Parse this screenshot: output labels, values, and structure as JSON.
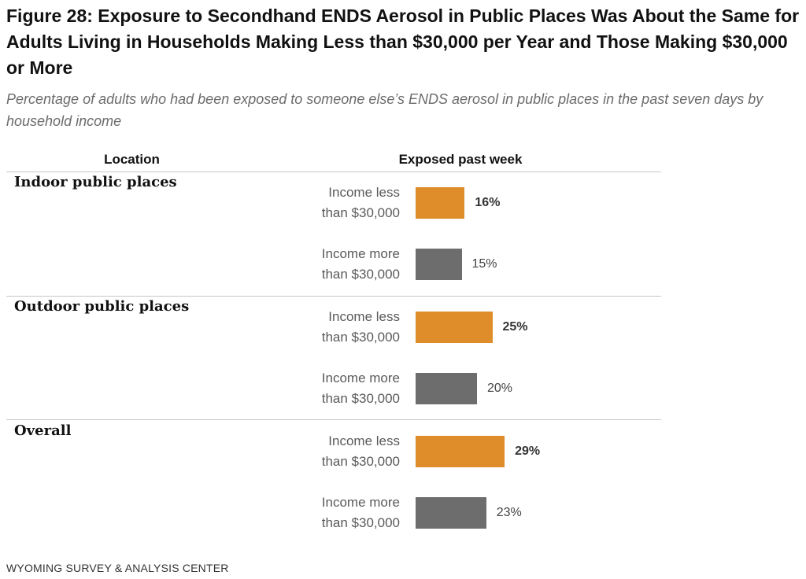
{
  "title": "Figure 28: Exposure to Secondhand ENDS Aerosol in Public Places Was About the Same for Adults Living in Households Making Less than $30,000 per Year and Those Making $30,000 or More",
  "subtitle": "Percentage of adults who had been exposed to someone else’s ENDS aerosol in public places in the past seven days by household income",
  "source": "WYOMING SURVEY & ANALYSIS CENTER",
  "colors": {
    "low_income": "#df8c2a",
    "high_income": "#6d6d6d"
  },
  "chart_data": {
    "type": "bar",
    "orientation": "horizontal",
    "column_headers": [
      "Location",
      "Exposed past week"
    ],
    "groups": [
      {
        "name": "Indoor public places",
        "bars": [
          {
            "label": "Income less than $30,000",
            "label_lines": [
              "Income less",
              "than $30,000"
            ],
            "value": 16,
            "display": "16%",
            "emphasis": true
          },
          {
            "label": "Income more than $30,000",
            "label_lines": [
              "Income more",
              "than $30,000"
            ],
            "value": 15,
            "display": "15%",
            "emphasis": false
          }
        ]
      },
      {
        "name": "Outdoor public places",
        "bars": [
          {
            "label": "Income less than $30,000",
            "label_lines": [
              "Income less",
              "than $30,000"
            ],
            "value": 25,
            "display": "25%",
            "emphasis": true
          },
          {
            "label": "Income more than $30,000",
            "label_lines": [
              "Income more",
              "than $30,000"
            ],
            "value": 20,
            "display": "20%",
            "emphasis": false
          }
        ]
      },
      {
        "name": "Overall",
        "bars": [
          {
            "label": "Income less than $30,000",
            "label_lines": [
              "Income less",
              "than $30,000"
            ],
            "value": 29,
            "display": "29%",
            "emphasis": true
          },
          {
            "label": "Income more than $30,000",
            "label_lines": [
              "Income more",
              "than $30,000"
            ],
            "value": 23,
            "display": "23%",
            "emphasis": false
          }
        ]
      }
    ],
    "xlim": [
      0,
      100
    ],
    "grid": false
  }
}
